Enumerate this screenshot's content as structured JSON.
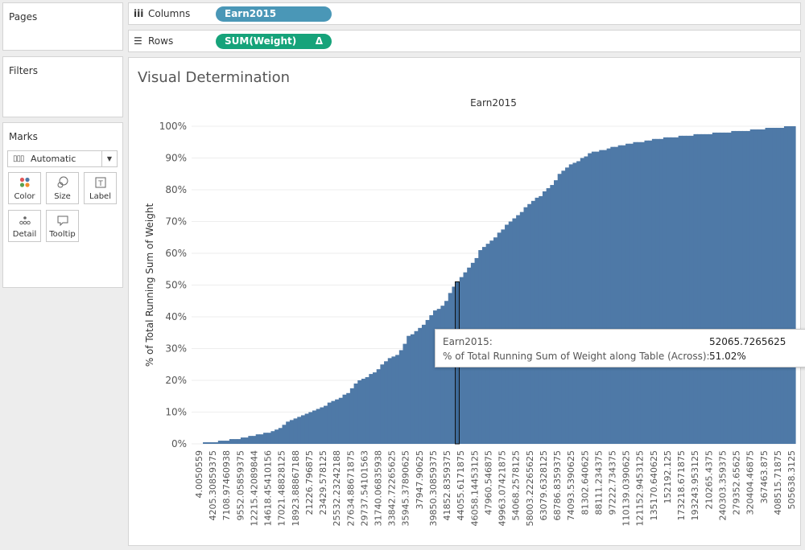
{
  "panels": {
    "pages": "Pages",
    "filters": "Filters",
    "marks": "Marks"
  },
  "marks": {
    "mark_type": "Automatic",
    "buttons": [
      {
        "label": "Color",
        "icon": "color-icon"
      },
      {
        "label": "Size",
        "icon": "size-icon"
      },
      {
        "label": "Label",
        "icon": "label-icon"
      },
      {
        "label": "Detail",
        "icon": "detail-icon"
      },
      {
        "label": "Tooltip",
        "icon": "tooltip-icon"
      }
    ]
  },
  "shelves": {
    "columns": {
      "label": "Columns",
      "pill": "Earn2015"
    },
    "rows": {
      "label": "Rows",
      "pill": "SUM(Weight)",
      "pill_suffix": "Δ"
    }
  },
  "sheet": {
    "title": "Visual Determination"
  },
  "tooltip": {
    "field1_label": "Earn2015:",
    "field1_value": "52065.7265625",
    "field2_label": "% of Total Running Sum of Weight along Table (Across):",
    "field2_value": "51.02%"
  },
  "colors": {
    "bar": "#4e79a7",
    "dimension_pill": "#4a97b7",
    "measure_pill": "#16a37a"
  },
  "chart_data": {
    "type": "bar",
    "title": "Earn2015",
    "ylabel": "% of Total Running Sum of Weight",
    "ylim": [
      0,
      100
    ],
    "yticks": [
      0,
      10,
      20,
      30,
      40,
      50,
      60,
      70,
      80,
      90,
      100
    ],
    "ytick_labels": [
      "0%",
      "10%",
      "20%",
      "30%",
      "40%",
      "50%",
      "60%",
      "70%",
      "80%",
      "90%",
      "100%"
    ],
    "grid": true,
    "x_tick_labels": [
      "4.0050559",
      "4205.30859375",
      "7108.97460938",
      "9552.05859375",
      "12215.42089844",
      "14618.45410156",
      "17021.48828125",
      "18923.88867188",
      "21226.796875",
      "23429.578125",
      "25532.23242188",
      "27634.88671875",
      "29737.54101563",
      "31740.06835938",
      "33842.72265625",
      "35945.37890625",
      "37947.90625",
      "39850.30859375",
      "41852.8359375",
      "44055.6171875",
      "46058.14453125",
      "47960.546875",
      "49963.07421875",
      "54068.2578125",
      "58003.22265625",
      "63079.6328125",
      "68786.8359375",
      "74093.5390625",
      "81302.640625",
      "88111.234375",
      "97222.734375",
      "110139.0390625",
      "121152.9453125",
      "135170.640625",
      "152192.125",
      "173218.671875",
      "193243.953125",
      "210265.4375",
      "240303.359375",
      "279352.65625",
      "320404.46875",
      "367463.875",
      "408515.71875",
      "505638.3125"
    ],
    "highlight": {
      "x": "52065.7265625",
      "value": 51.02
    },
    "profile": [
      [
        0,
        0
      ],
      [
        2,
        0.3
      ],
      [
        4,
        0.6
      ],
      [
        6,
        1.2
      ],
      [
        8,
        1.8
      ],
      [
        10,
        2.5
      ],
      [
        12,
        3.3
      ],
      [
        14,
        4.3
      ],
      [
        15,
        5.2
      ],
      [
        16,
        7.0
      ],
      [
        18,
        8.5
      ],
      [
        20,
        10.0
      ],
      [
        22,
        12.0
      ],
      [
        24,
        14.0
      ],
      [
        26,
        16.0
      ],
      [
        27,
        19.0
      ],
      [
        29,
        21.0
      ],
      [
        31,
        23.5
      ],
      [
        32,
        26.0
      ],
      [
        34,
        28.0
      ],
      [
        35,
        30.0
      ],
      [
        36,
        34.0
      ],
      [
        38,
        36.5
      ],
      [
        39,
        39.0
      ],
      [
        40,
        41.5
      ],
      [
        42,
        44.0
      ],
      [
        43,
        48.0
      ],
      [
        44,
        51.02
      ],
      [
        45,
        53.5
      ],
      [
        47,
        58.0
      ],
      [
        48,
        61.5
      ],
      [
        50,
        64.5
      ],
      [
        52,
        68.5
      ],
      [
        54,
        72.0
      ],
      [
        56,
        75.5
      ],
      [
        58,
        78.5
      ],
      [
        60,
        82.0
      ],
      [
        61,
        85.0
      ],
      [
        62,
        87.0
      ],
      [
        64,
        89.0
      ],
      [
        66,
        91.5
      ],
      [
        70,
        93.5
      ],
      [
        74,
        95.0
      ],
      [
        78,
        96.2
      ],
      [
        82,
        97.0
      ],
      [
        86,
        97.7
      ],
      [
        90,
        98.3
      ],
      [
        94,
        99.0
      ],
      [
        97,
        99.6
      ],
      [
        100,
        100
      ]
    ]
  }
}
